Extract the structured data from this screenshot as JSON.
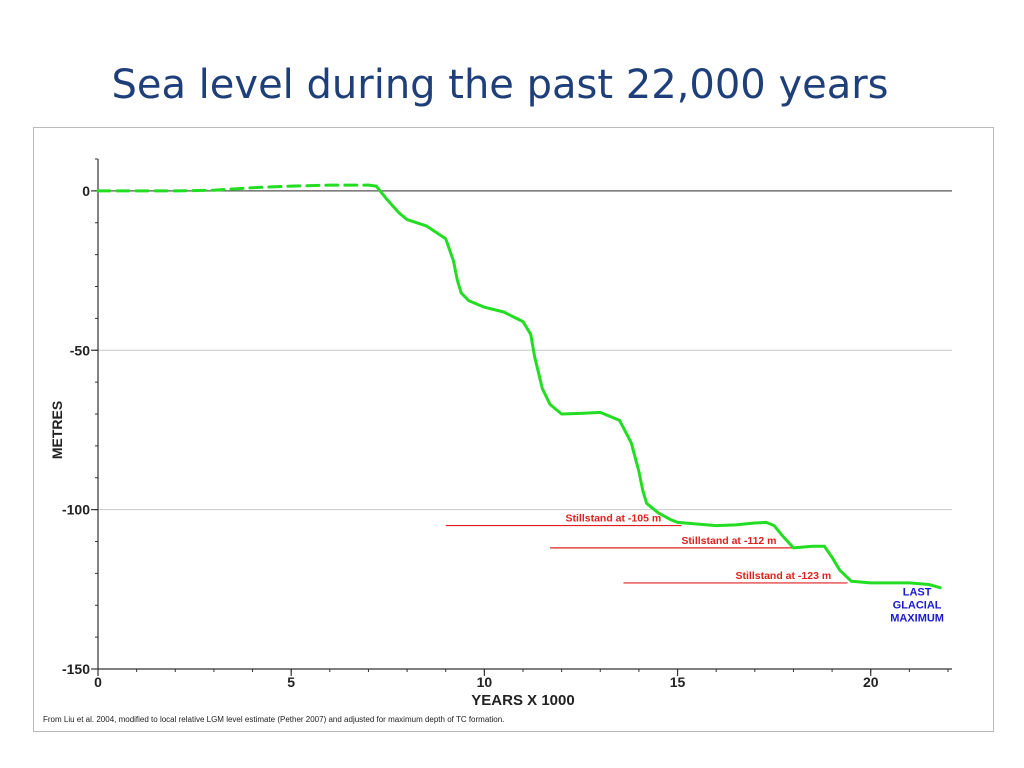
{
  "slide": {
    "title": "Sea level during the past 22,000 years",
    "source_note": "From Liu et al. 2004, modified to local relative LGM level  estimate (Pether 2007) and adjusted for maximum depth of TC formation."
  },
  "colors": {
    "title": "#1f3f7a",
    "curve": "#22dd22",
    "stillstand": "#e02020",
    "lgm_label": "#1a1ad0",
    "axis": "#333333",
    "grid": "#c8c8c8"
  },
  "chart_data": {
    "type": "line",
    "title": "",
    "xlabel": "YEARS  X 1000",
    "ylabel": "METRES",
    "xlim": [
      0,
      22
    ],
    "ylim": [
      -150,
      10
    ],
    "x_ticks": [
      0,
      5,
      10,
      15,
      20
    ],
    "y_ticks": [
      0,
      -50,
      -100,
      -150
    ],
    "x_minor_step": 1,
    "y_minor_step": 10,
    "grid": "horizontal at 0, -50, -100",
    "series": [
      {
        "style": "dashed",
        "x": [
          0,
          1,
          2,
          3,
          4,
          5,
          6,
          7
        ],
        "y": [
          0,
          0,
          0,
          0.2,
          1,
          1.5,
          1.8,
          1.8
        ]
      },
      {
        "style": "solid",
        "x": [
          7,
          7.2,
          7.5,
          7.8,
          8,
          8.5,
          9,
          9.2,
          9.3,
          9.4,
          9.6,
          10,
          10.5,
          11,
          11.2,
          11.3,
          11.4,
          11.5,
          11.7,
          12,
          12.5,
          13,
          13.5,
          13.8,
          14,
          14.1,
          14.2,
          14.5,
          14.8,
          15,
          16,
          16.5,
          17,
          17.3,
          17.5,
          17.7,
          18,
          18.5,
          18.8,
          19,
          19.2,
          19.5,
          20,
          21,
          21.5,
          21.8
        ],
        "y": [
          1.8,
          1.5,
          -3,
          -7,
          -9,
          -11,
          -15,
          -22,
          -28,
          -32,
          -34.5,
          -36.5,
          -38,
          -41,
          -45,
          -52,
          -57,
          -62,
          -67,
          -70,
          -69.8,
          -69.5,
          -72,
          -79,
          -88,
          -94,
          -98,
          -101,
          -103,
          -104,
          -105,
          -104.8,
          -104.2,
          -104,
          -105,
          -108,
          -112,
          -111.5,
          -111.5,
          -115,
          -119,
          -122.5,
          -123,
          -123,
          -123.5,
          -124.5
        ]
      }
    ],
    "stillstands": [
      {
        "label": "Stillstand at -105 m",
        "y": -105,
        "x_start": 9.0,
        "x_end": 15.1,
        "label_x": 12.1
      },
      {
        "label": "Stillstand at -112 m",
        "y": -112,
        "x_start": 11.7,
        "x_end": 18.0,
        "label_x": 15.1
      },
      {
        "label": "Stillstand at -123 m",
        "y": -123,
        "x_start": 13.6,
        "x_end": 19.4,
        "label_x": 16.5
      }
    ],
    "annotation": {
      "lines": [
        "LAST",
        "GLACIAL",
        "MAXIMUM"
      ],
      "x": 21.2,
      "y": -127
    }
  }
}
